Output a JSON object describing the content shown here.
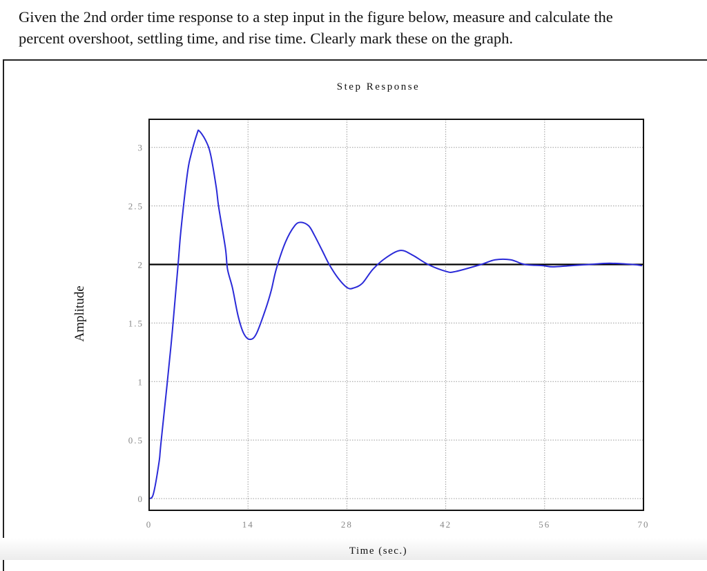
{
  "question": {
    "line1": "Given the 2nd order time response to a step input in the figure below, measure and calculate the",
    "line2": "percent overshoot, settling time, and rise time. Clearly mark these on the graph."
  },
  "chart_data": {
    "type": "line",
    "title": "Step Response",
    "xlabel": "Time (sec.)",
    "ylabel": "Amplitude",
    "xlim": [
      0,
      70
    ],
    "ylim": [
      -0.1,
      3.24
    ],
    "xticks": [
      0,
      14,
      28,
      42,
      56,
      70
    ],
    "xtick_labels": [
      "0",
      "14",
      "28",
      "42",
      "56",
      "70"
    ],
    "yticks": [
      0,
      0.5,
      1,
      1.5,
      2,
      2.5,
      3
    ],
    "ytick_labels": [
      "0",
      "0.5",
      "1",
      "1.5",
      "2",
      "2.5",
      "3"
    ],
    "grid": true,
    "reference_line": {
      "y": 2,
      "color": "#000000"
    },
    "series": [
      {
        "color": "#2a2ad8",
        "x": [
          0,
          0.6,
          1.4,
          1.7,
          3.1,
          4.1,
          4.5,
          5.4,
          5.9,
          6.8,
          7.1,
          8.0,
          8.7,
          9.5,
          9.85,
          10.8,
          11.1,
          11.8,
          12.6,
          13.4,
          14.3,
          15.2,
          16.5,
          17.3,
          18.0,
          19.3,
          20.6,
          21.5,
          22.6,
          23.4,
          24.5,
          25.5,
          26.8,
          28.1,
          29.0,
          30.2,
          31.7,
          33.6,
          35.6,
          37.3,
          39.5,
          42.1,
          43.4,
          47.0,
          49.0,
          51.2,
          53.2,
          55.8,
          57.1,
          59.7,
          62.3,
          65.2,
          68.5,
          69.8
        ],
        "y": [
          0,
          0.04,
          0.31,
          0.49,
          1.31,
          2.0,
          2.29,
          2.77,
          2.93,
          3.12,
          3.14,
          3.06,
          2.94,
          2.66,
          2.49,
          2.14,
          1.96,
          1.8,
          1.56,
          1.41,
          1.36,
          1.41,
          1.62,
          1.78,
          1.96,
          2.19,
          2.33,
          2.36,
          2.33,
          2.25,
          2.12,
          2.0,
          1.88,
          1.8,
          1.8,
          1.84,
          1.96,
          2.06,
          2.12,
          2.08,
          2.0,
          1.94,
          1.94,
          2.0,
          2.04,
          2.04,
          2.0,
          1.99,
          1.98,
          1.99,
          2.0,
          2.01,
          2.0,
          1.99
        ]
      }
    ]
  },
  "colors": {
    "curve": "#2a2ad8",
    "grid": "#999999",
    "tick_text": "#888888"
  }
}
